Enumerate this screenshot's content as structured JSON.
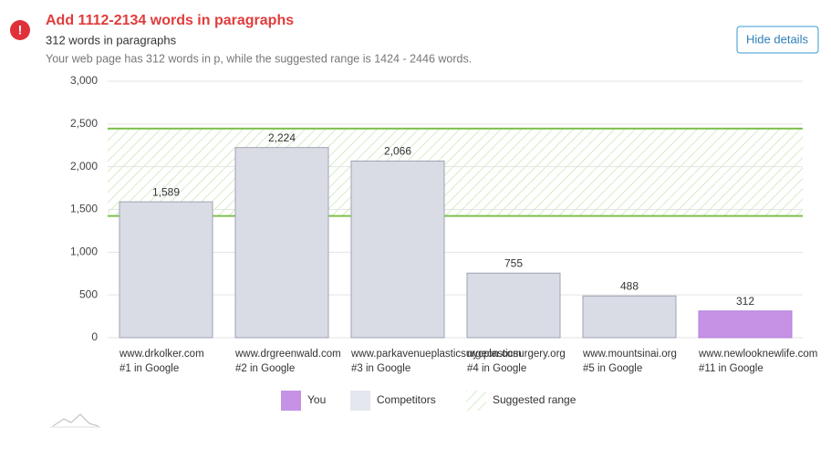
{
  "header": {
    "title": "Add 1112-2134 words in paragraphs",
    "subtitle": "312 words in paragraphs",
    "description": "Your web page has 312 words in p, while the suggested range is 1424 - 2446 words.",
    "button": "Hide details"
  },
  "chart_data": {
    "type": "bar",
    "categories": [
      "www.drkolker.com",
      "www.drgreenwald.com",
      "www.parkavenueplasticsurgeon.com",
      "nycplasticsurgery.org",
      "www.mountsinai.org",
      "www.newlooknewlife.com"
    ],
    "ranks": [
      "#1 in Google",
      "#2 in Google",
      "#3 in Google",
      "#4 in Google",
      "#5 in Google",
      "#11 in Google"
    ],
    "values": [
      1589,
      2224,
      2066,
      755,
      488,
      312
    ],
    "value_labels": [
      "1,589",
      "2,224",
      "2,066",
      "755",
      "488",
      "312"
    ],
    "colors": [
      "#d9dce4",
      "#d9dce4",
      "#d9dce4",
      "#d9dce4",
      "#d9dce4",
      "#c592e6"
    ],
    "range": [
      1424,
      2446
    ],
    "range_color": "#7dc04e",
    "ylim": [
      0,
      3000
    ],
    "yticks": [
      0,
      500,
      {
        "value": 1000,
        "label": "1,000"
      },
      {
        "value": 1500,
        "label": "1,500"
      },
      {
        "value": 2000,
        "label": "2,000"
      },
      {
        "value": 2500,
        "label": "2,500"
      },
      {
        "value": 3000,
        "label": "3,000"
      }
    ],
    "grid": true,
    "legend": [
      {
        "name": "You",
        "color": "#c592e6"
      },
      {
        "name": "Competitors",
        "color": "#e4e7ee"
      },
      {
        "name": "Suggested range"
      }
    ]
  }
}
